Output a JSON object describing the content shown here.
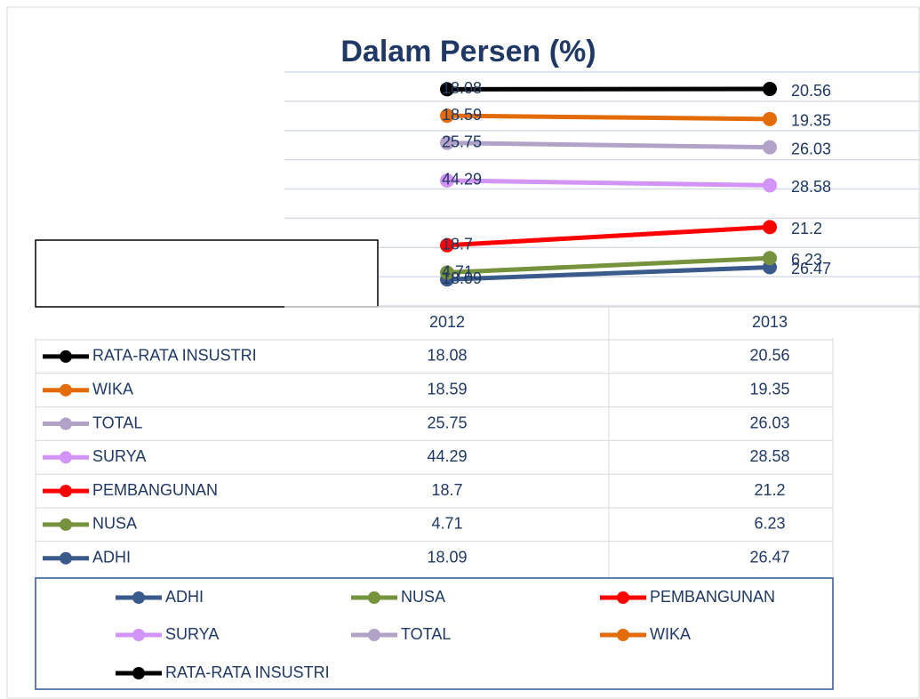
{
  "chart_data": {
    "type": "line",
    "stacked": true,
    "title": "Dalam Persen (%)",
    "categories": [
      "2012",
      "2013"
    ],
    "series": [
      {
        "name": "ADHI",
        "color": "#3a5a8c",
        "values": [
          18.09,
          26.47
        ]
      },
      {
        "name": "NUSA",
        "color": "#76923c",
        "values": [
          4.71,
          6.23
        ]
      },
      {
        "name": "PEMBANGUNAN",
        "color": "#ff0000",
        "values": [
          18.7,
          21.2
        ]
      },
      {
        "name": "SURYA",
        "color": "#d294f7",
        "values": [
          44.29,
          28.58
        ]
      },
      {
        "name": "TOTAL",
        "color": "#b3a2c7",
        "values": [
          25.75,
          26.03
        ]
      },
      {
        "name": "WIKA",
        "color": "#e36c09",
        "values": [
          18.59,
          19.35
        ]
      },
      {
        "name": "RATA-RATA INSUSTRI",
        "color": "#000000",
        "values": [
          18.08,
          20.56
        ]
      }
    ],
    "ylim": [
      0,
      160
    ],
    "yticks": [
      0,
      20,
      40,
      60,
      80,
      100,
      120,
      140,
      160
    ],
    "grid": true,
    "data_table": true,
    "legend": "bottom"
  }
}
